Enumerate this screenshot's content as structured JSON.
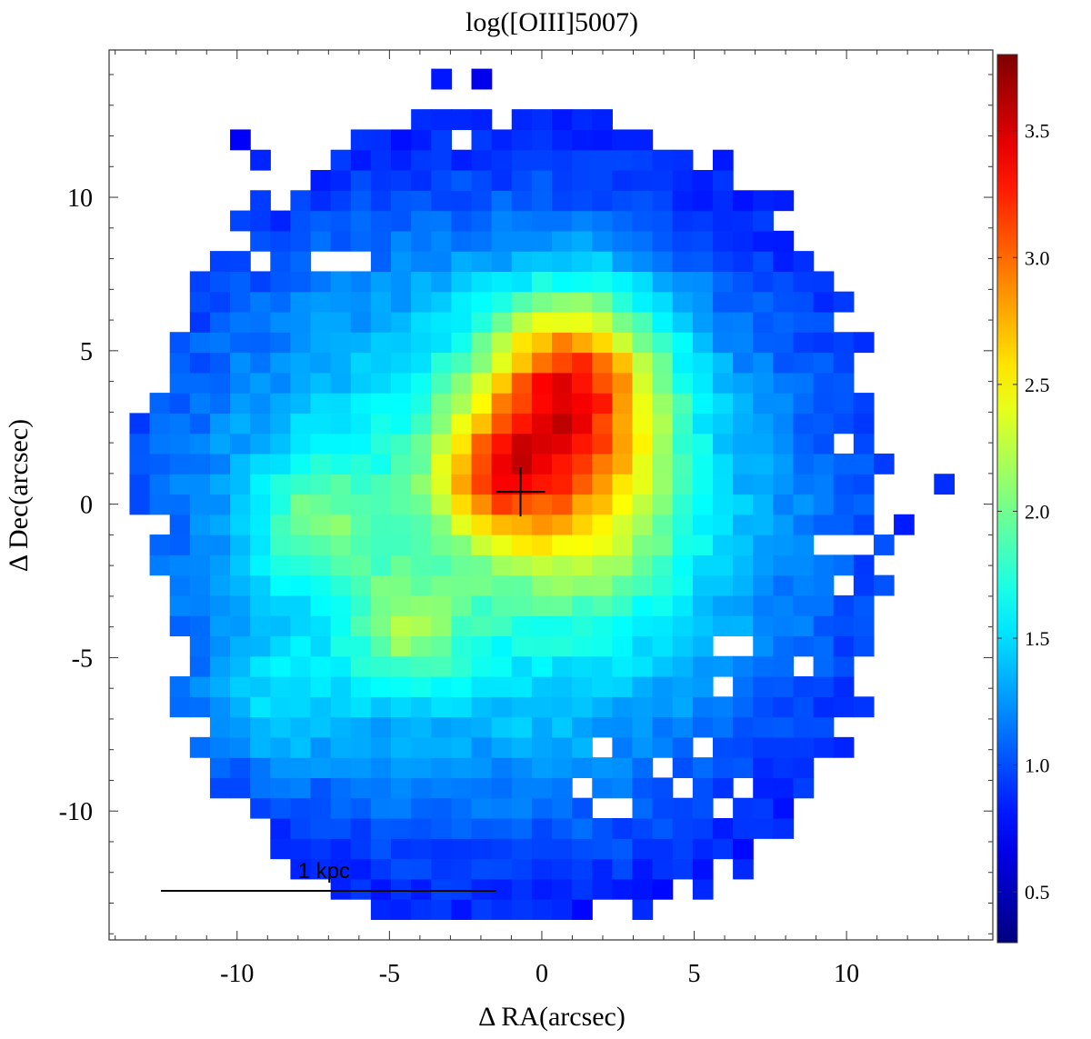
{
  "chart_data": {
    "type": "heatmap",
    "title": "log([OIII]5007)",
    "xlabel": "Δ RA(arcsec)",
    "ylabel": "Δ Dec(arcsec)",
    "xlim": [
      -14.2,
      14.8
    ],
    "ylim": [
      -14.2,
      14.8
    ],
    "xticks": [
      -10,
      -5,
      0,
      5,
      10
    ],
    "yticks": [
      -10,
      -5,
      0,
      5,
      10
    ],
    "pixel_size_arcsec": 0.66,
    "colormap": "jet",
    "colorbar": {
      "range": [
        0.3,
        3.8
      ],
      "ticks": [
        0.5,
        1.0,
        1.5,
        2.0,
        2.5,
        3.0,
        3.5
      ]
    },
    "scalebar": {
      "label": "1 kpc",
      "x_start": -12.5,
      "x_end": -1.5,
      "y": -12.6
    },
    "center_marker": {
      "x": -0.7,
      "y": 0.4
    },
    "map_model": {
      "background": {
        "base": 0.5,
        "amp": 1.25,
        "sigma_x": 9.0,
        "sigma_y": 8.0,
        "center": [
          -1.5,
          -0.5
        ]
      },
      "components": [
        {
          "center": [
            1.0,
            4.0
          ],
          "amp": 1.7,
          "sigma": 2.0
        },
        {
          "center": [
            -1.5,
            1.0
          ],
          "amp": 1.1,
          "sigma": 1.5
        },
        {
          "center": [
            1.5,
            0.0
          ],
          "amp": 0.8,
          "sigma": 2.2
        },
        {
          "center": [
            -7.5,
            -0.5
          ],
          "amp": 0.55,
          "sigma": 1.4
        },
        {
          "center": [
            -4.5,
            -4.0
          ],
          "amp": 0.6,
          "sigma": 1.3
        },
        {
          "center": [
            -9.0,
            -6.5
          ],
          "amp": 0.35,
          "sigma": 1.6
        }
      ],
      "footprint": {
        "center": [
          -0.7,
          -0.5
        ],
        "radius_x": 11.5,
        "radius_y": 12.8,
        "exponent": 2.4
      },
      "outliers": [
        [
          -10.0,
          12.0
        ],
        [
          -9.3,
          11.3
        ],
        [
          -3.5,
          13.8
        ],
        [
          -2.2,
          13.8
        ],
        [
          -2.8,
          12.8
        ],
        [
          13.3,
          0.5
        ],
        [
          11.9,
          -0.6
        ],
        [
          -12.6,
          3.3
        ],
        [
          -13.3,
          2.6
        ],
        [
          -13.3,
          1.9
        ],
        [
          -12.6,
          1.9
        ],
        [
          -13.3,
          1.3
        ],
        [
          -12.6,
          1.3
        ],
        [
          -13.3,
          0.6
        ],
        [
          -12.6,
          0.6
        ],
        [
          -13.3,
          0.0
        ],
        [
          -12.6,
          0.0
        ],
        [
          -11.9,
          0.0
        ],
        [
          -11.9,
          1.3
        ],
        [
          -11.9,
          1.9
        ]
      ],
      "holes": [
        [
          -9.3,
          7.9
        ],
        [
          -7.2,
          7.9
        ],
        [
          -6.6,
          7.9
        ],
        [
          -7.2,
          11.3
        ],
        [
          -7.9,
          12.6
        ],
        [
          -5.9,
          7.9
        ],
        [
          -2.6,
          11.9
        ],
        [
          -0.6,
          14.0
        ],
        [
          2.6,
          13.3
        ],
        [
          3.9,
          14.0
        ],
        [
          10.6,
          4.6
        ],
        [
          11.2,
          3.3
        ],
        [
          10.0,
          2.0
        ],
        [
          9.2,
          -1.3
        ],
        [
          9.9,
          -1.3
        ],
        [
          10.6,
          -1.3
        ],
        [
          9.9,
          -2.6
        ],
        [
          8.6,
          -5.3
        ],
        [
          5.9,
          -5.9
        ],
        [
          5.2,
          -7.9
        ],
        [
          3.9,
          -8.6
        ],
        [
          4.6,
          -9.3
        ],
        [
          2.0,
          -7.9
        ],
        [
          1.3,
          -9.3
        ],
        [
          2.6,
          -9.9
        ],
        [
          2.0,
          -9.9
        ],
        [
          5.9,
          -9.9
        ],
        [
          6.6,
          -9.3
        ],
        [
          8.6,
          -10.0
        ],
        [
          -11.2,
          -9.3
        ],
        [
          -11.2,
          -11.9
        ],
        [
          -9.9,
          -11.9
        ],
        [
          -9.2,
          -11.2
        ],
        [
          5.9,
          -4.6
        ],
        [
          6.6,
          -4.6
        ]
      ]
    }
  }
}
